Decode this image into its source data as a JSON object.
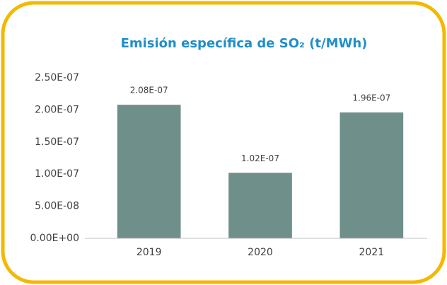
{
  "chart_data": {
    "type": "bar",
    "title": "Emisión específica de SO₂  (t/MWh)",
    "categories": [
      "2019",
      "2020",
      "2021"
    ],
    "values": [
      2.08e-07,
      1.02e-07,
      1.96e-07
    ],
    "value_labels": [
      "2.08E-07",
      "1.02E-07",
      "1.96E-07"
    ],
    "color": "#6e8f8a",
    "ylim": [
      0,
      2.5e-07
    ],
    "yticks": [
      {
        "value": 0,
        "label": "0.00E+00"
      },
      {
        "value": 5e-08,
        "label": "5.00E-08"
      },
      {
        "value": 1e-07,
        "label": "1.00E-07"
      },
      {
        "value": 1.5e-07,
        "label": "1.50E-07"
      },
      {
        "value": 2e-07,
        "label": "2.00E-07"
      },
      {
        "value": 2.5e-07,
        "label": "2.50E-07"
      }
    ],
    "grid": false
  }
}
